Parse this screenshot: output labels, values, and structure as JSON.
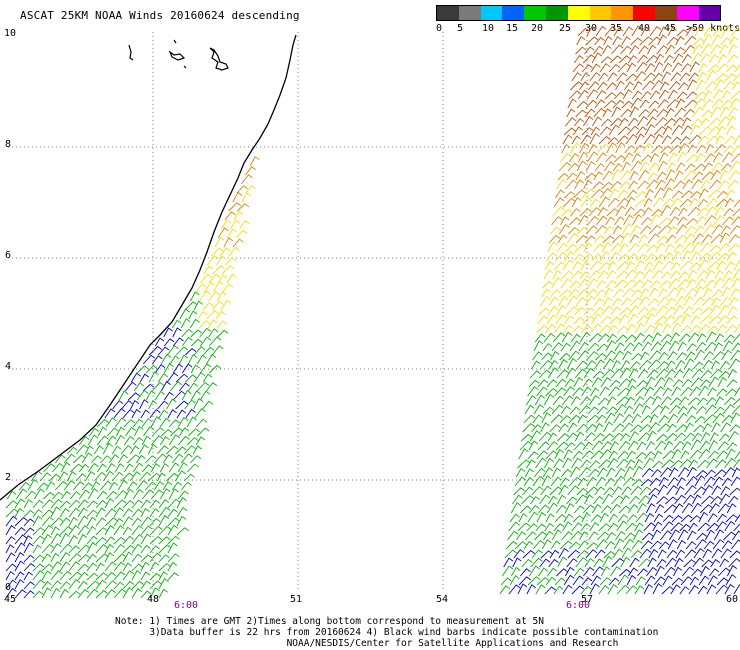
{
  "title": "ASCAT 25KM NOAA Winds 20160624 descending",
  "legend": {
    "colors": [
      "#3a3a3a",
      "#7a7a7a",
      "#00c8ff",
      "#0064ff",
      "#00c800",
      "#009600",
      "#ffff00",
      "#ffc800",
      "#ff9600",
      "#ff0000",
      "#8b4513",
      "#ff00ff",
      "#6600aa"
    ],
    "labels": [
      "0",
      "5",
      "10",
      "15",
      "20",
      "25",
      "30",
      "35",
      "40",
      "45",
      ">50 knots"
    ]
  },
  "axes": {
    "y_ticks": [
      "10",
      "8",
      "6",
      "4",
      "2",
      "0"
    ],
    "x_ticks": [
      "45",
      "48",
      "51",
      "54",
      "57",
      "60"
    ]
  },
  "time_labels": [
    "6:00",
    "6:00"
  ],
  "notes": [
    "Note: 1) Times are GMT 2)Times along bottom correspond to measurement at 5N",
    "      3)Data buffer is 22 hrs from 20160624 4) Black wind barbs indicate possible contamination",
    "                              NOAA/NESDIS/Center for Satellite Applications and Research"
  ],
  "colors": {
    "coast": "#000000",
    "grid": "#808080",
    "wind_low_blue": "#0000c8",
    "wind_green": "#00b400",
    "wind_yellow": "#f0e000",
    "wind_orange": "#e08000",
    "wind_rust": "#c05000"
  }
}
